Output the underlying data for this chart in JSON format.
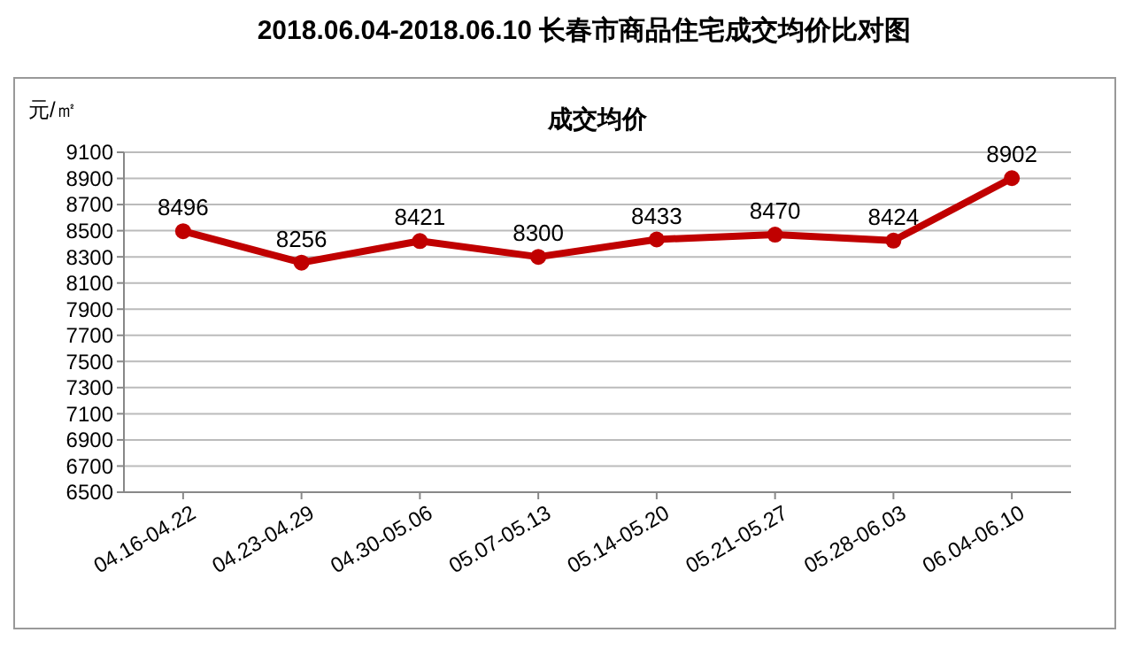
{
  "chart_data": {
    "type": "line",
    "title": "2018.06.04-2018.06.10 长春市商品住宅成交均价比对图",
    "subtitle": "成交均价",
    "ylabel": "元/㎡",
    "categories": [
      "04.16-04.22",
      "04.23-04.29",
      "04.30-05.06",
      "05.07-05.13",
      "05.14-05.20",
      "05.21-05.27",
      "05.28-06.03",
      "06.04-06.10"
    ],
    "series": [
      {
        "color": "#c00000",
        "values": [
          8496,
          8256,
          8421,
          8300,
          8433,
          8470,
          8424,
          8902
        ]
      }
    ],
    "ylim": [
      6500,
      9100
    ],
    "yticks": [
      6500,
      6700,
      6900,
      7100,
      7300,
      7500,
      7700,
      7900,
      8100,
      8300,
      8500,
      8700,
      8900,
      9100
    ],
    "grid": "y",
    "data_labels": true,
    "marker": "circle",
    "line_style": "solid"
  }
}
